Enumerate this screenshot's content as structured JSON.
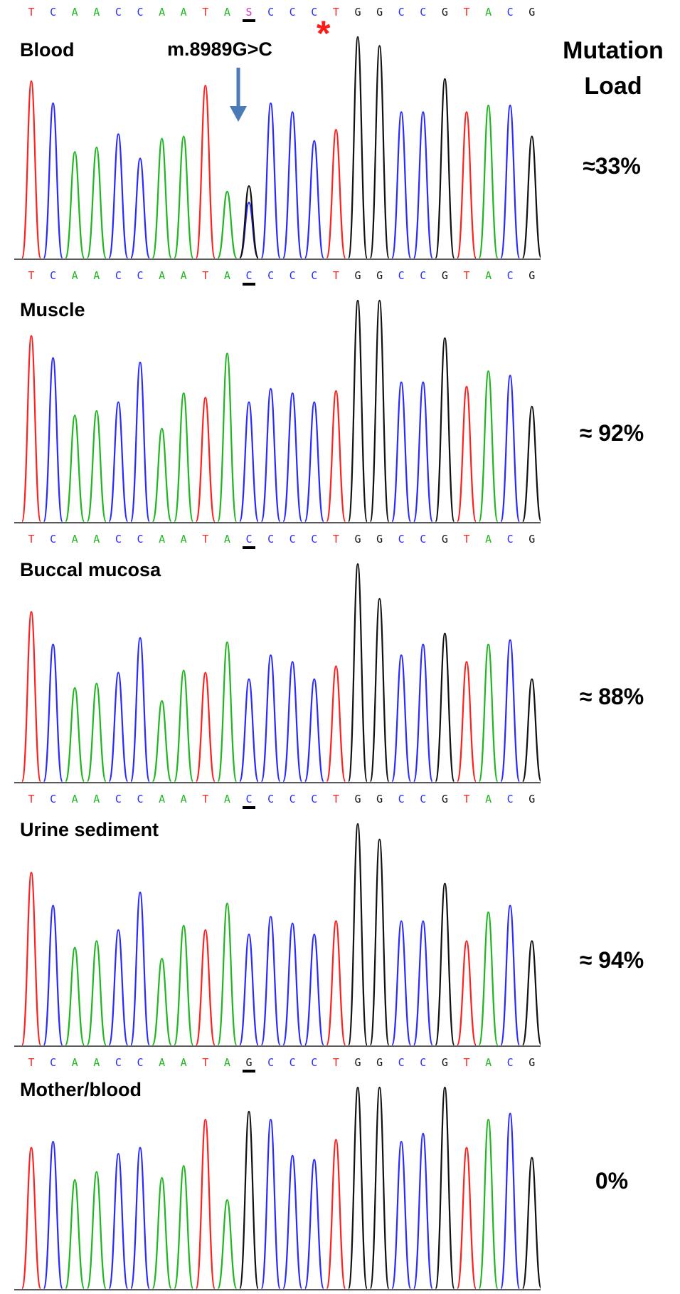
{
  "header": {
    "title_line1": "Mutation",
    "title_line2": "Load"
  },
  "annotation": {
    "mutation": "m.8989G>C",
    "star": "*"
  },
  "colors": {
    "A": "#1fb71f",
    "C": "#2a2aff",
    "G": "#111111",
    "T": "#ff2020",
    "S": "#cc33cc",
    "arrow": "#4a7ab8"
  },
  "chart_data": {
    "type": "line",
    "panels": [
      {
        "name": "Blood",
        "mutation_load": "≈33%",
        "sequence": [
          "T",
          "C",
          "A",
          "A",
          "C",
          "C",
          "A",
          "A",
          "T",
          "A",
          "S",
          "C",
          "C",
          "C",
          "T",
          "G",
          "G",
          "C",
          "C",
          "G",
          "T",
          "A",
          "C",
          "G"
        ],
        "variant_index": 10,
        "peak_heights": [
          0.8,
          0.7,
          0.48,
          0.5,
          0.56,
          0.45,
          0.54,
          0.55,
          0.78,
          0.3,
          0.25,
          0.7,
          0.66,
          0.53,
          0.58,
          1.0,
          0.96,
          0.66,
          0.66,
          0.81,
          0.66,
          0.69,
          0.69,
          0.55
        ]
      },
      {
        "name": "Muscle",
        "mutation_load": "≈ 92%",
        "sequence": [
          "T",
          "C",
          "A",
          "A",
          "C",
          "C",
          "A",
          "A",
          "T",
          "A",
          "C",
          "C",
          "C",
          "C",
          "T",
          "G",
          "G",
          "C",
          "C",
          "G",
          "T",
          "A",
          "C",
          "G"
        ],
        "variant_index": 10,
        "peak_heights": [
          0.84,
          0.74,
          0.48,
          0.5,
          0.54,
          0.72,
          0.42,
          0.58,
          0.56,
          0.76,
          0.54,
          0.6,
          0.58,
          0.54,
          0.59,
          1.0,
          1.0,
          0.63,
          0.63,
          0.83,
          0.61,
          0.68,
          0.66,
          0.52
        ]
      },
      {
        "name": "Buccal mucosa",
        "mutation_load": "≈ 88%",
        "sequence": [
          "T",
          "C",
          "A",
          "A",
          "C",
          "C",
          "A",
          "A",
          "T",
          "A",
          "C",
          "C",
          "C",
          "C",
          "T",
          "G",
          "G",
          "C",
          "C",
          "G",
          "T",
          "A",
          "C",
          "G"
        ],
        "variant_index": 10,
        "peak_heights": [
          0.78,
          0.63,
          0.43,
          0.45,
          0.5,
          0.66,
          0.37,
          0.51,
          0.5,
          0.64,
          0.47,
          0.58,
          0.55,
          0.47,
          0.53,
          1.0,
          0.84,
          0.58,
          0.63,
          0.68,
          0.55,
          0.63,
          0.65,
          0.47
        ]
      },
      {
        "name": "Urine sediment",
        "mutation_load": "≈ 94%",
        "sequence": [
          "T",
          "C",
          "A",
          "A",
          "C",
          "C",
          "A",
          "A",
          "T",
          "A",
          "C",
          "C",
          "C",
          "C",
          "T",
          "G",
          "G",
          "C",
          "C",
          "G",
          "T",
          "A",
          "C",
          "G"
        ],
        "variant_index": 10,
        "peak_heights": [
          0.78,
          0.63,
          0.44,
          0.47,
          0.52,
          0.69,
          0.39,
          0.54,
          0.52,
          0.64,
          0.5,
          0.58,
          0.55,
          0.5,
          0.56,
          1.0,
          0.93,
          0.56,
          0.56,
          0.73,
          0.47,
          0.6,
          0.63,
          0.47
        ]
      },
      {
        "name": "Mother/blood",
        "mutation_load": "0%",
        "sequence": [
          "T",
          "C",
          "A",
          "A",
          "C",
          "C",
          "A",
          "A",
          "T",
          "A",
          "G",
          "C",
          "C",
          "C",
          "T",
          "G",
          "G",
          "C",
          "C",
          "G",
          "T",
          "A",
          "C",
          "G"
        ],
        "variant_index": 10,
        "peak_heights": [
          0.7,
          0.73,
          0.54,
          0.58,
          0.67,
          0.7,
          0.55,
          0.61,
          0.84,
          0.44,
          0.88,
          0.84,
          0.66,
          0.64,
          0.74,
          1.0,
          1.0,
          0.73,
          0.77,
          1.0,
          0.7,
          0.84,
          0.87,
          0.65
        ]
      }
    ]
  }
}
